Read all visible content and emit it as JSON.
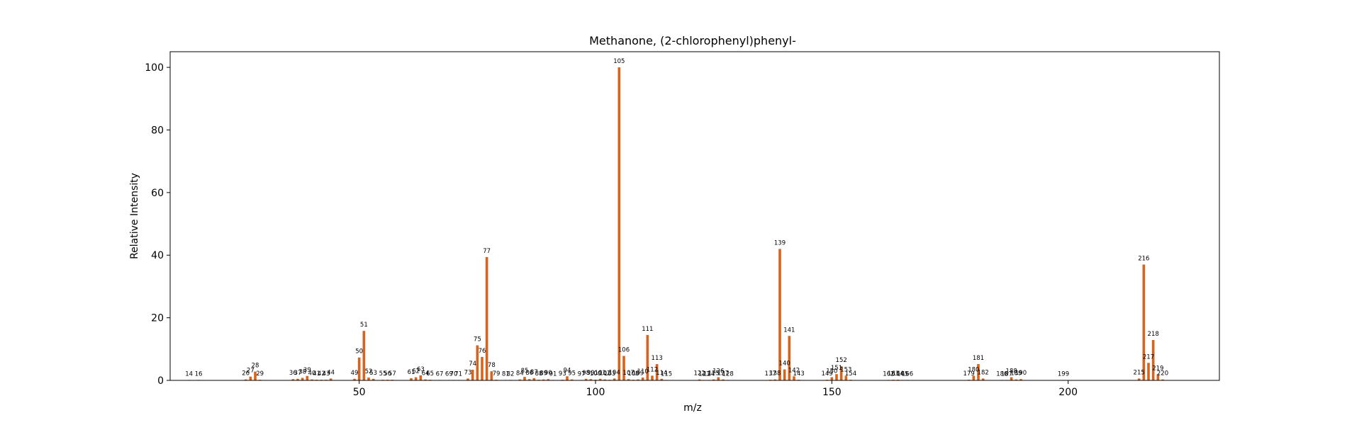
{
  "chart_data": {
    "type": "bar",
    "title": "Methanone, (2-chlorophenyl)phenyl-",
    "xlabel": "m/z",
    "ylabel": "Relative Intensity",
    "xlim": [
      10,
      232
    ],
    "ylim": [
      0,
      105
    ],
    "xticks": [
      50,
      100,
      150,
      200
    ],
    "yticks": [
      0,
      20,
      40,
      60,
      80,
      100
    ],
    "grid": false,
    "bar_color": "#d9631a",
    "points": [
      {
        "x": 14,
        "y": 0.1,
        "label": "14"
      },
      {
        "x": 16,
        "y": 0.1,
        "label": "16"
      },
      {
        "x": 26,
        "y": 0.3,
        "label": "26"
      },
      {
        "x": 27,
        "y": 1.2,
        "label": "27"
      },
      {
        "x": 28,
        "y": 2.8,
        "label": "28"
      },
      {
        "x": 29,
        "y": 0.2,
        "label": "29"
      },
      {
        "x": 36,
        "y": 0.4,
        "label": "36"
      },
      {
        "x": 37,
        "y": 0.5,
        "label": "37"
      },
      {
        "x": 38,
        "y": 0.8,
        "label": "38"
      },
      {
        "x": 39,
        "y": 1.4,
        "label": "39"
      },
      {
        "x": 40,
        "y": 0.3,
        "label": "40"
      },
      {
        "x": 41,
        "y": 0.2,
        "label": "41"
      },
      {
        "x": 42,
        "y": 0.2,
        "label": "42"
      },
      {
        "x": 43,
        "y": 0.2,
        "label": "43"
      },
      {
        "x": 44,
        "y": 0.6,
        "label": "44"
      },
      {
        "x": 49,
        "y": 0.5,
        "label": "49"
      },
      {
        "x": 50,
        "y": 7.3,
        "label": "50"
      },
      {
        "x": 51,
        "y": 15.8,
        "label": "51"
      },
      {
        "x": 52,
        "y": 0.9,
        "label": "52"
      },
      {
        "x": 53,
        "y": 0.5,
        "label": "53"
      },
      {
        "x": 55,
        "y": 0.2,
        "label": "55"
      },
      {
        "x": 56,
        "y": 0.2,
        "label": "56"
      },
      {
        "x": 57,
        "y": 0.2,
        "label": "57"
      },
      {
        "x": 61,
        "y": 0.7,
        "label": "61"
      },
      {
        "x": 62,
        "y": 1.0,
        "label": "62"
      },
      {
        "x": 63,
        "y": 1.6,
        "label": "63"
      },
      {
        "x": 64,
        "y": 0.3,
        "label": "64"
      },
      {
        "x": 65,
        "y": 0.2,
        "label": "65"
      },
      {
        "x": 67,
        "y": 0.1,
        "label": "67"
      },
      {
        "x": 69,
        "y": 0.1,
        "label": "69"
      },
      {
        "x": 70,
        "y": 0.1,
        "label": "70"
      },
      {
        "x": 71,
        "y": 0.1,
        "label": "71"
      },
      {
        "x": 73,
        "y": 0.6,
        "label": "73"
      },
      {
        "x": 74,
        "y": 3.4,
        "label": "74"
      },
      {
        "x": 75,
        "y": 11.2,
        "label": "75"
      },
      {
        "x": 76,
        "y": 7.5,
        "label": "76"
      },
      {
        "x": 77,
        "y": 39.4,
        "label": "77"
      },
      {
        "x": 78,
        "y": 2.9,
        "label": "78"
      },
      {
        "x": 79,
        "y": 0.2,
        "label": "79"
      },
      {
        "x": 81,
        "y": 0.1,
        "label": "81"
      },
      {
        "x": 82,
        "y": 0.1,
        "label": "82"
      },
      {
        "x": 84,
        "y": 0.3,
        "label": "84"
      },
      {
        "x": 85,
        "y": 1.1,
        "label": "85"
      },
      {
        "x": 86,
        "y": 0.4,
        "label": "86"
      },
      {
        "x": 87,
        "y": 0.7,
        "label": "87"
      },
      {
        "x": 88,
        "y": 0.2,
        "label": "88"
      },
      {
        "x": 89,
        "y": 0.3,
        "label": "89"
      },
      {
        "x": 90,
        "y": 0.4,
        "label": "90"
      },
      {
        "x": 91,
        "y": 0.1,
        "label": "91"
      },
      {
        "x": 93,
        "y": 0.2,
        "label": "93"
      },
      {
        "x": 94,
        "y": 1.3,
        "label": "94"
      },
      {
        "x": 95,
        "y": 0.3,
        "label": "95"
      },
      {
        "x": 97,
        "y": 0.1,
        "label": "97"
      },
      {
        "x": 98,
        "y": 0.5,
        "label": "98"
      },
      {
        "x": 99,
        "y": 0.4,
        "label": "99"
      },
      {
        "x": 100,
        "y": 0.2,
        "label": "100"
      },
      {
        "x": 101,
        "y": 0.5,
        "label": "101"
      },
      {
        "x": 102,
        "y": 0.3,
        "label": "102"
      },
      {
        "x": 103,
        "y": 0.2,
        "label": "103"
      },
      {
        "x": 104,
        "y": 0.6,
        "label": "104"
      },
      {
        "x": 105,
        "y": 100,
        "label": "105"
      },
      {
        "x": 106,
        "y": 7.8,
        "label": "106"
      },
      {
        "x": 107,
        "y": 0.4,
        "label": "107"
      },
      {
        "x": 108,
        "y": 0.2,
        "label": "108"
      },
      {
        "x": 109,
        "y": 0.3,
        "label": "109"
      },
      {
        "x": 110,
        "y": 0.9,
        "label": "110"
      },
      {
        "x": 111,
        "y": 14.5,
        "label": "111"
      },
      {
        "x": 112,
        "y": 1.5,
        "label": "112"
      },
      {
        "x": 113,
        "y": 5.2,
        "label": "113"
      },
      {
        "x": 114,
        "y": 0.5,
        "label": "114"
      },
      {
        "x": 115,
        "y": 0.1,
        "label": "115"
      },
      {
        "x": 122,
        "y": 0.3,
        "label": "122"
      },
      {
        "x": 123,
        "y": 0.1,
        "label": "123"
      },
      {
        "x": 124,
        "y": 0.1,
        "label": "124"
      },
      {
        "x": 125,
        "y": 0.3,
        "label": "125"
      },
      {
        "x": 126,
        "y": 1.0,
        "label": "126"
      },
      {
        "x": 127,
        "y": 0.3,
        "label": "127"
      },
      {
        "x": 128,
        "y": 0.1,
        "label": "128"
      },
      {
        "x": 137,
        "y": 0.2,
        "label": "137"
      },
      {
        "x": 138,
        "y": 0.3,
        "label": "138"
      },
      {
        "x": 139,
        "y": 42.0,
        "label": "139"
      },
      {
        "x": 140,
        "y": 3.5,
        "label": "140"
      },
      {
        "x": 141,
        "y": 14.2,
        "label": "141"
      },
      {
        "x": 142,
        "y": 1.3,
        "label": "142"
      },
      {
        "x": 143,
        "y": 0.2,
        "label": "143"
      },
      {
        "x": 149,
        "y": 0.2,
        "label": "149"
      },
      {
        "x": 150,
        "y": 1.0,
        "label": "150"
      },
      {
        "x": 151,
        "y": 2.0,
        "label": "151"
      },
      {
        "x": 152,
        "y": 4.5,
        "label": "152"
      },
      {
        "x": 153,
        "y": 1.5,
        "label": "153"
      },
      {
        "x": 154,
        "y": 0.2,
        "label": "154"
      },
      {
        "x": 162,
        "y": 0.1,
        "label": "162"
      },
      {
        "x": 163,
        "y": 0.2,
        "label": "163"
      },
      {
        "x": 164,
        "y": 0.2,
        "label": "164"
      },
      {
        "x": 165,
        "y": 0.1,
        "label": "165"
      },
      {
        "x": 166,
        "y": 0.1,
        "label": "166"
      },
      {
        "x": 179,
        "y": 0.2,
        "label": "179"
      },
      {
        "x": 180,
        "y": 1.5,
        "label": "180"
      },
      {
        "x": 181,
        "y": 5.2,
        "label": "181"
      },
      {
        "x": 182,
        "y": 0.6,
        "label": "182"
      },
      {
        "x": 186,
        "y": 0.1,
        "label": "186"
      },
      {
        "x": 187,
        "y": 0.1,
        "label": "187"
      },
      {
        "x": 188,
        "y": 1.0,
        "label": "188"
      },
      {
        "x": 189,
        "y": 0.3,
        "label": "189"
      },
      {
        "x": 190,
        "y": 0.4,
        "label": "190"
      },
      {
        "x": 199,
        "y": 0.1,
        "label": "199"
      },
      {
        "x": 215,
        "y": 0.6,
        "label": "215"
      },
      {
        "x": 216,
        "y": 37.0,
        "label": "216"
      },
      {
        "x": 217,
        "y": 5.6,
        "label": "217"
      },
      {
        "x": 218,
        "y": 12.9,
        "label": "218"
      },
      {
        "x": 219,
        "y": 1.9,
        "label": "219"
      },
      {
        "x": 220,
        "y": 0.3,
        "label": "220"
      }
    ]
  }
}
